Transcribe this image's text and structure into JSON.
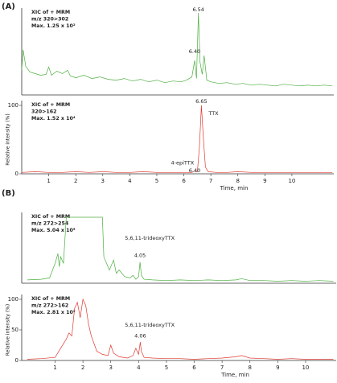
{
  "panel_labels": [
    "(A)",
    "(B)"
  ],
  "chart_data": [
    {
      "type": "line",
      "info": [
        "XIC of + MRM",
        "m/z 320>302",
        "Max. 1.25 x 10²"
      ],
      "xlim": [
        0,
        11.55
      ],
      "ylim": [
        0,
        100
      ],
      "x": [
        0,
        0.05,
        0.15,
        0.3,
        0.5,
        0.7,
        0.9,
        1.0,
        1.1,
        1.3,
        1.5,
        1.7,
        1.8,
        2.0,
        2.3,
        2.6,
        2.9,
        3.2,
        3.5,
        3.8,
        4.1,
        4.4,
        4.7,
        5.0,
        5.3,
        5.6,
        5.9,
        6.1,
        6.3,
        6.4,
        6.47,
        6.54,
        6.6,
        6.68,
        6.75,
        6.85,
        7.0,
        7.3,
        7.6,
        7.9,
        8.2,
        8.5,
        8.8,
        9.1,
        9.4,
        9.7,
        10.0,
        10.3,
        10.6,
        10.9,
        11.2,
        11.5
      ],
      "series": [
        {
          "color": "#4caf3f",
          "values": [
            30,
            55,
            35,
            28,
            26,
            24,
            25,
            34,
            24,
            29,
            26,
            30,
            23,
            21,
            24,
            20,
            22,
            19,
            18,
            20,
            17,
            19,
            16,
            18,
            15,
            17,
            16,
            18,
            22,
            42,
            20,
            100,
            40,
            25,
            48,
            18,
            16,
            14,
            15,
            13,
            14,
            12,
            13,
            12,
            11,
            13,
            12,
            11,
            12,
            11,
            12,
            11
          ]
        }
      ],
      "annotations": [
        {
          "text": "6.54",
          "x": 6.54,
          "y": 104
        },
        {
          "text": "6.40",
          "x": 6.4,
          "y": 53
        }
      ]
    },
    {
      "type": "line",
      "info": [
        "XIC of + MRM",
        "320>162",
        "Max. 1.52 x 10⁴"
      ],
      "xlim": [
        0,
        11.55
      ],
      "ylim": [
        0,
        100
      ],
      "yticks": [
        0,
        100
      ],
      "xticks": [
        1,
        2,
        3,
        4,
        5,
        6,
        7,
        8,
        9,
        10
      ],
      "xlabel": "Time, min",
      "ylabel": "Relative intensity (%)",
      "x": [
        0,
        0.5,
        1.0,
        1.5,
        2.0,
        2.5,
        3.0,
        3.5,
        4.0,
        4.5,
        5.0,
        5.5,
        6.0,
        6.3,
        6.4,
        6.5,
        6.58,
        6.65,
        6.72,
        6.8,
        6.9,
        7.2,
        7.6,
        8.0,
        8.5,
        9.0,
        9.5,
        10.0,
        10.5,
        11.0,
        11.5
      ],
      "series": [
        {
          "color": "#e03a30",
          "values": [
            2,
            3,
            2,
            2,
            3,
            2,
            3,
            2,
            2,
            3,
            2,
            2,
            2,
            2,
            4,
            3,
            40,
            100,
            55,
            10,
            3,
            2,
            2,
            3,
            2,
            2,
            2,
            2,
            2,
            2,
            2
          ]
        }
      ],
      "annotations": [
        {
          "text": "6.65",
          "x": 6.65,
          "y": 106
        },
        {
          "text": "TTX",
          "x": 7.1,
          "y": 88
        },
        {
          "text": "4-epiTTX",
          "x": 5.95,
          "y": 16
        },
        {
          "text": "6.40",
          "x": 6.4,
          "y": 5
        }
      ]
    },
    {
      "type": "line",
      "info": [
        "XIC of + MRM",
        "m/z 272>254",
        "Max. 5.04 x 10⁵"
      ],
      "xlim": [
        -0.2,
        11.1
      ],
      "ylim": [
        0,
        100
      ],
      "x": [
        0,
        0.5,
        0.8,
        1.0,
        1.1,
        1.15,
        1.2,
        1.3,
        1.4,
        1.5,
        2.0,
        2.5,
        2.7,
        2.75,
        2.85,
        2.95,
        3.0,
        3.1,
        3.2,
        3.3,
        3.5,
        3.7,
        3.8,
        3.9,
        4.0,
        4.05,
        4.1,
        4.2,
        4.5,
        5.0,
        5.5,
        6.0,
        6.5,
        7.0,
        7.5,
        7.7,
        8.0,
        8.5,
        9.0,
        9.5,
        10.0,
        10.5,
        11.0
      ],
      "series": [
        {
          "color": "#4caf3f",
          "values": [
            5,
            6,
            8,
            30,
            45,
            25,
            40,
            30,
            100,
            100,
            100,
            100,
            100,
            40,
            30,
            20,
            25,
            35,
            15,
            20,
            10,
            8,
            12,
            6,
            10,
            32,
            12,
            6,
            5,
            4,
            5,
            4,
            5,
            4,
            5,
            7,
            4,
            4,
            3,
            4,
            3,
            4,
            3
          ]
        }
      ],
      "annotations": [
        {
          "text": "5,6,11-trideoxyTTX",
          "x": 4.4,
          "y": 68
        },
        {
          "text": "4.05",
          "x": 4.05,
          "y": 42
        }
      ]
    },
    {
      "type": "line",
      "info": [
        "XIC of + MRM",
        "m/z 272>162",
        "Max. 2.81 x 10⁵"
      ],
      "xlim": [
        -0.2,
        11.1
      ],
      "ylim": [
        0,
        100
      ],
      "yticks": [
        0,
        50,
        100
      ],
      "xticks": [
        1,
        2,
        3,
        4,
        5,
        6,
        7,
        8,
        9,
        10
      ],
      "xlabel": "Time, min",
      "ylabel": "Relative intensity (%)",
      "x": [
        0,
        0.5,
        1.0,
        1.2,
        1.4,
        1.5,
        1.6,
        1.7,
        1.8,
        1.9,
        2.0,
        2.1,
        2.2,
        2.3,
        2.5,
        2.7,
        2.9,
        3.0,
        3.1,
        3.3,
        3.6,
        3.8,
        3.9,
        4.0,
        4.06,
        4.1,
        4.2,
        4.5,
        5.0,
        5.5,
        6.0,
        6.5,
        7.0,
        7.5,
        7.7,
        8.0,
        8.5,
        9.0,
        9.5,
        10.0,
        10.5,
        11.0
      ],
      "series": [
        {
          "color": "#e03a30",
          "values": [
            2,
            3,
            5,
            20,
            35,
            45,
            40,
            85,
            95,
            70,
            100,
            90,
            60,
            40,
            15,
            10,
            8,
            25,
            12,
            6,
            4,
            8,
            20,
            10,
            30,
            15,
            5,
            4,
            3,
            3,
            2,
            3,
            4,
            6,
            8,
            4,
            3,
            2,
            3,
            2,
            2,
            2
          ]
        }
      ],
      "annotations": [
        {
          "text": "5,6,11-trideoxyTTX",
          "x": 4.4,
          "y": 58
        },
        {
          "text": "4.06",
          "x": 4.06,
          "y": 40
        }
      ]
    }
  ]
}
